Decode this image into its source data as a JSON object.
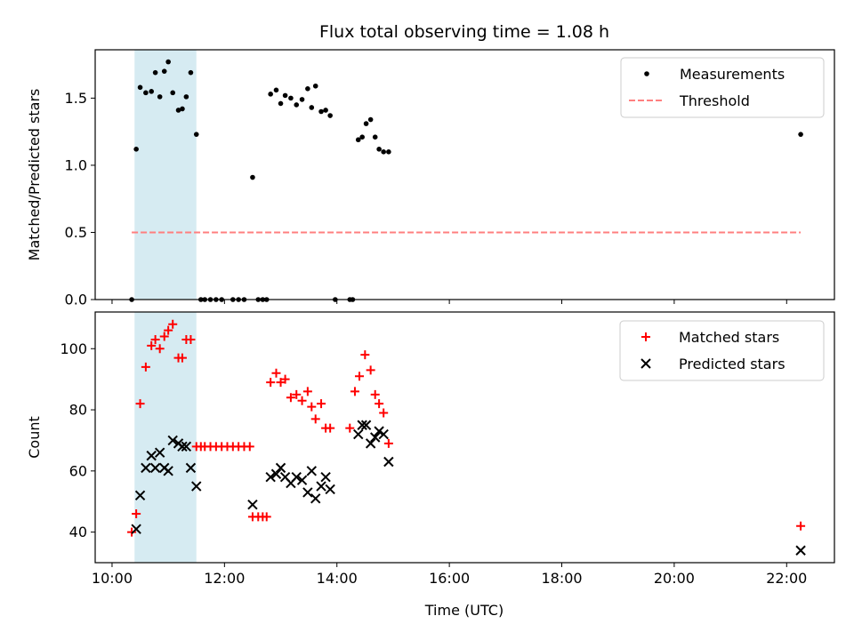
{
  "chart_data": {
    "title": "Flux total observing time = 1.08 h",
    "xlabel": "Time (UTC)",
    "x_unit": "hours UTC",
    "xlim": [
      9.7,
      22.85
    ],
    "xticks": [
      10,
      12,
      14,
      16,
      18,
      20,
      22
    ],
    "xtick_labels": [
      "10:00",
      "12:00",
      "14:00",
      "16:00",
      "18:00",
      "20:00",
      "22:00"
    ],
    "highlight_span": {
      "x": [
        10.4,
        11.5
      ],
      "color": "#add8e6"
    },
    "panels": [
      {
        "type": "scatter",
        "ylabel": "Matched/Predicted stars",
        "ylim": [
          0,
          1.86
        ],
        "yticks": [
          0.0,
          0.5,
          1.0,
          1.5
        ],
        "ytick_labels": [
          "0.0",
          "0.5",
          "1.0",
          "1.5"
        ],
        "legend_position": "top-right",
        "series": [
          {
            "name": "Measurements",
            "marker": "dot",
            "color": "#000000",
            "points": [
              [
                10.35,
                0.0
              ],
              [
                10.43,
                1.12
              ],
              [
                10.5,
                1.58
              ],
              [
                10.6,
                1.54
              ],
              [
                10.7,
                1.55
              ],
              [
                10.77,
                1.69
              ],
              [
                10.85,
                1.51
              ],
              [
                10.93,
                1.7
              ],
              [
                11.0,
                1.77
              ],
              [
                11.08,
                1.54
              ],
              [
                11.18,
                1.41
              ],
              [
                11.25,
                1.42
              ],
              [
                11.32,
                1.51
              ],
              [
                11.4,
                1.69
              ],
              [
                11.5,
                1.23
              ],
              [
                11.58,
                0.0
              ],
              [
                11.65,
                0.0
              ],
              [
                11.75,
                0.0
              ],
              [
                11.85,
                0.0
              ],
              [
                11.95,
                0.0
              ],
              [
                12.15,
                0.0
              ],
              [
                12.25,
                0.0
              ],
              [
                12.35,
                0.0
              ],
              [
                12.5,
                0.91
              ],
              [
                12.6,
                0.0
              ],
              [
                12.68,
                0.0
              ],
              [
                12.75,
                0.0
              ],
              [
                12.82,
                1.53
              ],
              [
                12.92,
                1.56
              ],
              [
                13.0,
                1.46
              ],
              [
                13.08,
                1.52
              ],
              [
                13.18,
                1.5
              ],
              [
                13.28,
                1.45
              ],
              [
                13.38,
                1.49
              ],
              [
                13.48,
                1.57
              ],
              [
                13.55,
                1.43
              ],
              [
                13.62,
                1.59
              ],
              [
                13.72,
                1.4
              ],
              [
                13.8,
                1.41
              ],
              [
                13.88,
                1.37
              ],
              [
                13.97,
                0.0
              ],
              [
                14.23,
                0.0
              ],
              [
                14.28,
                0.0
              ],
              [
                14.38,
                1.19
              ],
              [
                14.45,
                1.21
              ],
              [
                14.52,
                1.31
              ],
              [
                14.6,
                1.34
              ],
              [
                14.68,
                1.21
              ],
              [
                14.75,
                1.12
              ],
              [
                14.83,
                1.1
              ],
              [
                14.92,
                1.1
              ],
              [
                22.25,
                1.23
              ]
            ]
          },
          {
            "name": "Threshold",
            "type": "line",
            "style": "dashed",
            "color": "#ff7f7f",
            "points": [
              [
                10.35,
                0.5
              ],
              [
                22.25,
                0.5
              ]
            ]
          }
        ]
      },
      {
        "type": "scatter",
        "ylabel": "Count",
        "ylim": [
          30,
          112
        ],
        "yticks": [
          40,
          60,
          80,
          100
        ],
        "ytick_labels": [
          "40",
          "60",
          "80",
          "100"
        ],
        "legend_position": "top-right",
        "series": [
          {
            "name": "Matched stars",
            "marker": "plus",
            "color": "#ff0000",
            "points": [
              [
                10.35,
                40
              ],
              [
                10.43,
                46
              ],
              [
                10.5,
                82
              ],
              [
                10.6,
                94
              ],
              [
                10.7,
                101
              ],
              [
                10.77,
                103
              ],
              [
                10.85,
                100
              ],
              [
                10.93,
                104
              ],
              [
                11.0,
                106
              ],
              [
                11.08,
                108
              ],
              [
                11.18,
                97
              ],
              [
                11.25,
                97
              ],
              [
                11.32,
                103
              ],
              [
                11.4,
                103
              ],
              [
                11.5,
                68
              ],
              [
                11.58,
                68
              ],
              [
                11.65,
                68
              ],
              [
                11.75,
                68
              ],
              [
                11.85,
                68
              ],
              [
                11.95,
                68
              ],
              [
                12.05,
                68
              ],
              [
                12.15,
                68
              ],
              [
                12.25,
                68
              ],
              [
                12.35,
                68
              ],
              [
                12.45,
                68
              ],
              [
                12.5,
                45
              ],
              [
                12.6,
                45
              ],
              [
                12.68,
                45
              ],
              [
                12.75,
                45
              ],
              [
                12.82,
                89
              ],
              [
                12.92,
                92
              ],
              [
                13.0,
                89
              ],
              [
                13.08,
                90
              ],
              [
                13.18,
                84
              ],
              [
                13.28,
                85
              ],
              [
                13.38,
                83
              ],
              [
                13.48,
                86
              ],
              [
                13.55,
                81
              ],
              [
                13.62,
                77
              ],
              [
                13.72,
                82
              ],
              [
                13.8,
                74
              ],
              [
                13.88,
                74
              ],
              [
                14.23,
                74
              ],
              [
                14.32,
                86
              ],
              [
                14.4,
                91
              ],
              [
                14.5,
                98
              ],
              [
                14.6,
                93
              ],
              [
                14.68,
                85
              ],
              [
                14.75,
                82
              ],
              [
                14.83,
                79
              ],
              [
                14.92,
                69
              ],
              [
                22.25,
                42
              ]
            ]
          },
          {
            "name": "Predicted stars",
            "marker": "x",
            "color": "#000000",
            "points": [
              [
                10.43,
                41
              ],
              [
                10.5,
                52
              ],
              [
                10.6,
                61
              ],
              [
                10.7,
                65
              ],
              [
                10.77,
                61
              ],
              [
                10.85,
                66
              ],
              [
                10.93,
                61
              ],
              [
                11.0,
                60
              ],
              [
                11.08,
                70
              ],
              [
                11.18,
                69
              ],
              [
                11.25,
                68
              ],
              [
                11.32,
                68
              ],
              [
                11.4,
                61
              ],
              [
                11.5,
                55
              ],
              [
                12.5,
                49
              ],
              [
                12.82,
                58
              ],
              [
                12.92,
                59
              ],
              [
                13.0,
                61
              ],
              [
                13.08,
                58
              ],
              [
                13.18,
                56
              ],
              [
                13.28,
                58
              ],
              [
                13.38,
                57
              ],
              [
                13.48,
                53
              ],
              [
                13.55,
                60
              ],
              [
                13.62,
                51
              ],
              [
                13.72,
                55
              ],
              [
                13.8,
                58
              ],
              [
                13.88,
                54
              ],
              [
                14.38,
                72
              ],
              [
                14.45,
                75
              ],
              [
                14.52,
                75
              ],
              [
                14.6,
                69
              ],
              [
                14.68,
                71
              ],
              [
                14.75,
                73
              ],
              [
                14.83,
                72
              ],
              [
                14.92,
                63
              ],
              [
                22.25,
                34
              ]
            ]
          }
        ]
      }
    ]
  }
}
